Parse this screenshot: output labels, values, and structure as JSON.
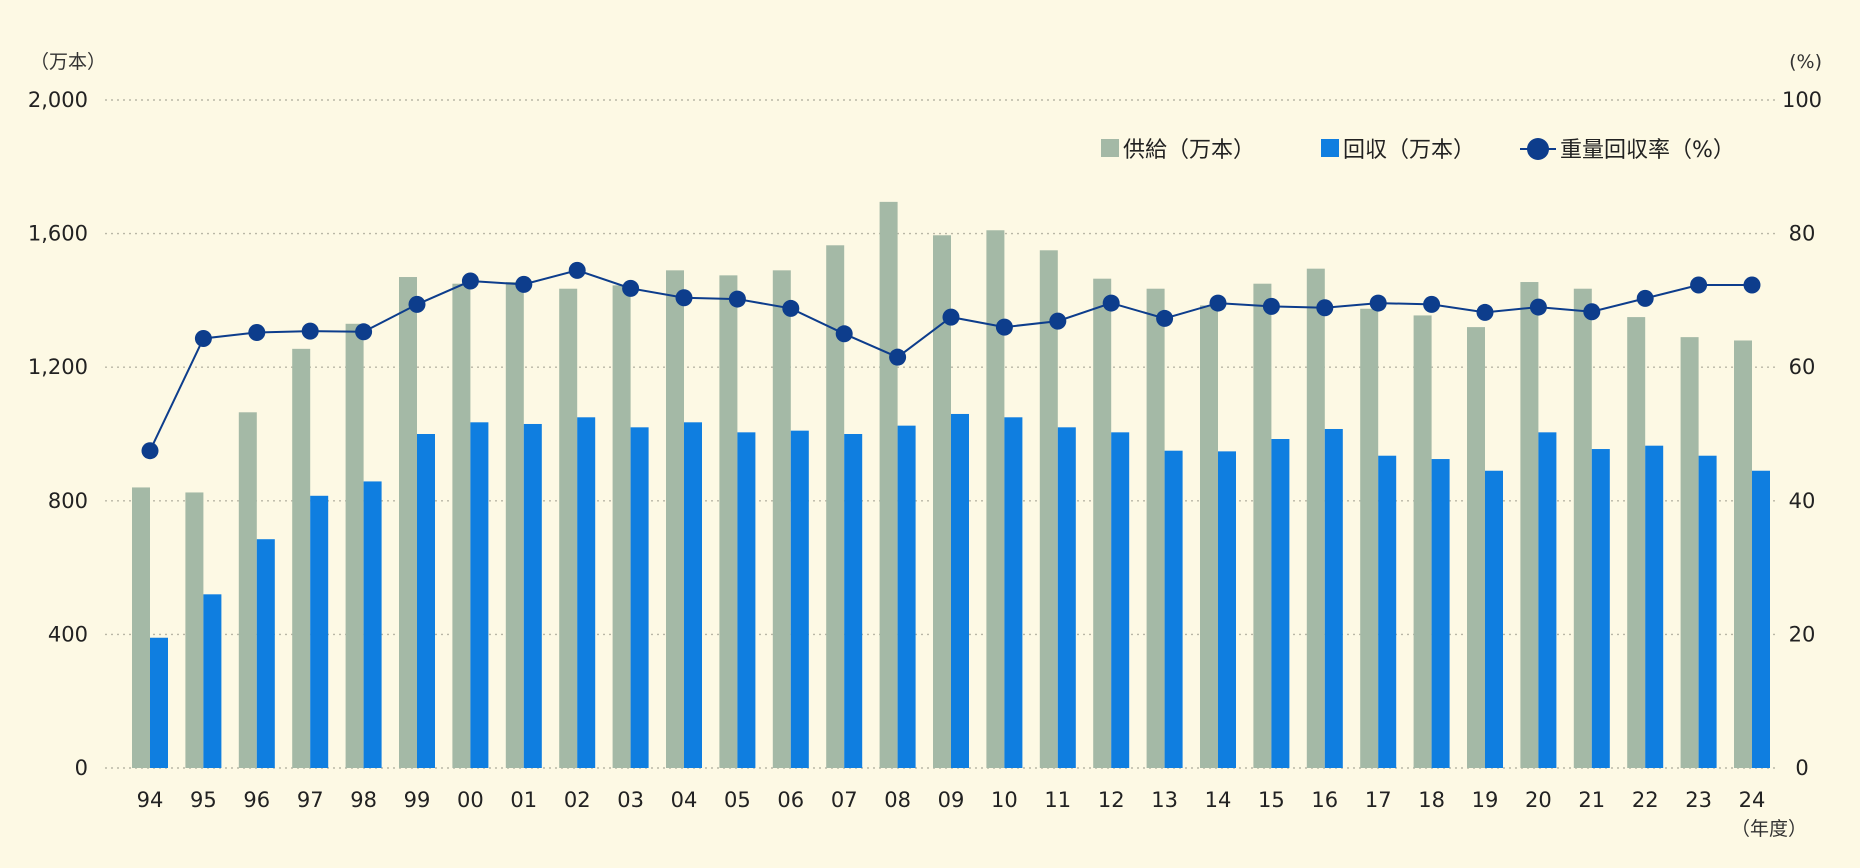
{
  "chart_data": {
    "type": "bar",
    "categories": [
      "94",
      "95",
      "96",
      "97",
      "98",
      "99",
      "00",
      "01",
      "02",
      "03",
      "04",
      "05",
      "06",
      "07",
      "08",
      "09",
      "10",
      "11",
      "12",
      "13",
      "14",
      "15",
      "16",
      "17",
      "18",
      "19",
      "20",
      "21",
      "22",
      "23",
      "24"
    ],
    "series": [
      {
        "name": "供給（万本）",
        "kind": "bar",
        "axis": "left",
        "color": "#a4b9a6",
        "values": [
          840,
          825,
          1065,
          1255,
          1330,
          1470,
          1450,
          1455,
          1435,
          1445,
          1490,
          1475,
          1490,
          1565,
          1695,
          1595,
          1610,
          1550,
          1465,
          1435,
          1385,
          1450,
          1495,
          1375,
          1355,
          1320,
          1455,
          1435,
          1350,
          1290,
          1280
        ]
      },
      {
        "name": "回収（万本）",
        "kind": "bar",
        "axis": "left",
        "color": "#0f7ee0",
        "values": [
          390,
          520,
          685,
          815,
          858,
          1000,
          1035,
          1030,
          1050,
          1020,
          1035,
          1005,
          1010,
          1000,
          1025,
          1060,
          1050,
          1020,
          1005,
          950,
          948,
          985,
          1015,
          935,
          925,
          890,
          1005,
          955,
          965,
          935,
          890
        ]
      },
      {
        "name": "重量回収率（%）",
        "kind": "line",
        "axis": "right",
        "color": "#0d3d8c",
        "values": [
          47.5,
          64.3,
          65.2,
          65.4,
          65.3,
          69.4,
          72.9,
          72.4,
          74.5,
          71.8,
          70.4,
          70.2,
          68.8,
          65.0,
          61.5,
          67.5,
          66.0,
          66.9,
          69.6,
          67.3,
          69.6,
          69.1,
          68.9,
          69.6,
          69.4,
          68.2,
          69.0,
          68.3,
          70.3,
          72.3,
          72.3
        ]
      }
    ],
    "y_left": {
      "unit": "（万本）",
      "ylim": [
        0,
        2000
      ],
      "ticks": [
        "0",
        "400",
        "800",
        "1,200",
        "1,600",
        "2,000"
      ],
      "tick_values": [
        0,
        400,
        800,
        1200,
        1600,
        2000
      ]
    },
    "y_right": {
      "unit": "(%)",
      "ylim": [
        0,
        100
      ],
      "ticks": [
        "0",
        "20",
        "40",
        "60",
        "80",
        "100"
      ],
      "tick_values": [
        0,
        20,
        40,
        60,
        80,
        100
      ]
    },
    "xlabel": "（年度）",
    "grid": true,
    "legend_position": "top-right"
  },
  "colors": {
    "background": "#fdf9e4",
    "supply": "#a4b9a6",
    "collection": "#0f7ee0",
    "rate": "#0d3d8c"
  }
}
